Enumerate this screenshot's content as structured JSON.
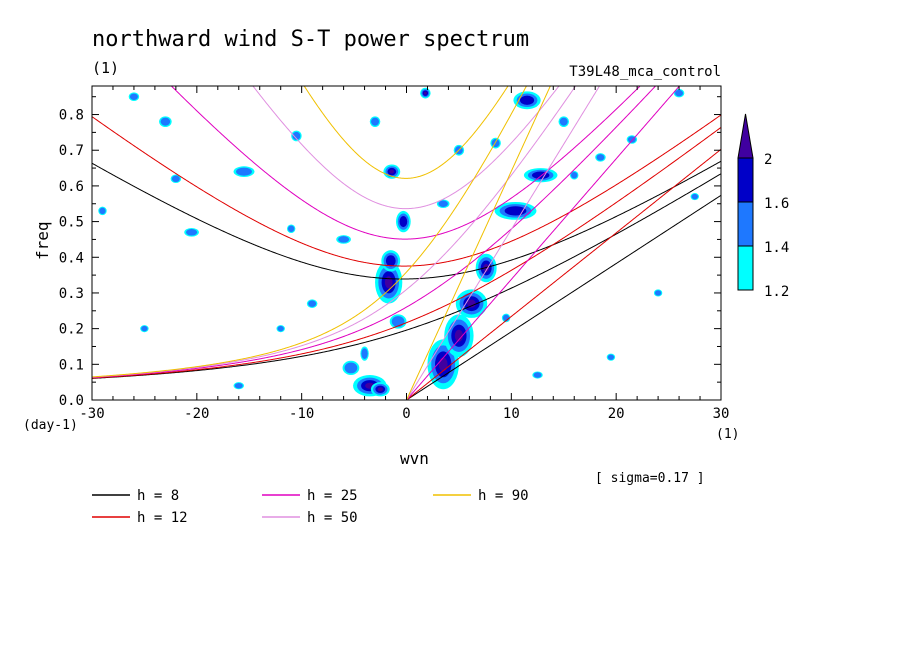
{
  "chart_data": {
    "type": "heatmap",
    "title": "northward wind S-T power spectrum",
    "subtitle_left": "(1)",
    "subtitle_right": "T39L48_mca_control",
    "xlabel": "wvn",
    "ylabel": "freq",
    "x_unit": "(1)",
    "y_unit": "(day-1)",
    "note": "[ sigma=0.17 ]",
    "xlim": [
      -30,
      30
    ],
    "ylim": [
      0,
      0.88
    ],
    "x_ticks": [
      -30,
      -20,
      -10,
      0,
      10,
      20,
      30
    ],
    "x_tick_labels": [
      "-30",
      "-20",
      "-10",
      "0",
      "10",
      "20",
      "30"
    ],
    "y_ticks": [
      0,
      0.1,
      0.2,
      0.3,
      0.4,
      0.5,
      0.6,
      0.7,
      0.8
    ],
    "y_tick_labels": [
      "0.0",
      "0.1",
      "0.2",
      "0.3",
      "0.4",
      "0.5",
      "0.6",
      "0.7",
      "0.8"
    ],
    "colorbar": {
      "levels": [
        1.2,
        1.4,
        1.6,
        2
      ],
      "labels": [
        "1.2",
        "1.4",
        "1.6",
        "2"
      ],
      "colors": [
        "#00ffff",
        "#1e78ff",
        "#0000c8",
        "#4000a0"
      ]
    },
    "dispersion_curves": [
      {
        "h": 8,
        "label": "h =  8",
        "color": "#000000"
      },
      {
        "h": 12,
        "label": "h = 12",
        "color": "#e00000"
      },
      {
        "h": 25,
        "label": "h = 25",
        "color": "#e000c0"
      },
      {
        "h": 50,
        "label": "h = 50",
        "color": "#e090e0"
      },
      {
        "h": 90,
        "label": "h = 90",
        "color": "#f0c000"
      }
    ],
    "blobs": [
      {
        "x": -1.7,
        "y": 0.33,
        "rx": 1.3,
        "ry": 0.06,
        "level": 3
      },
      {
        "x": -1.5,
        "y": 0.39,
        "rx": 0.9,
        "ry": 0.03,
        "level": 2
      },
      {
        "x": -0.3,
        "y": 0.5,
        "rx": 0.7,
        "ry": 0.03,
        "level": 2
      },
      {
        "x": -3.5,
        "y": 0.04,
        "rx": 1.6,
        "ry": 0.03,
        "level": 3
      },
      {
        "x": -2.5,
        "y": 0.03,
        "rx": 0.9,
        "ry": 0.02,
        "level": 3
      },
      {
        "x": 3.5,
        "y": 0.1,
        "rx": 1.5,
        "ry": 0.07,
        "level": 3
      },
      {
        "x": 5.0,
        "y": 0.18,
        "rx": 1.4,
        "ry": 0.06,
        "level": 3
      },
      {
        "x": 6.2,
        "y": 0.27,
        "rx": 1.5,
        "ry": 0.04,
        "level": 3
      },
      {
        "x": 7.6,
        "y": 0.37,
        "rx": 1.0,
        "ry": 0.04,
        "level": 3
      },
      {
        "x": 10.4,
        "y": 0.53,
        "rx": 2.0,
        "ry": 0.025,
        "level": 2
      },
      {
        "x": 12.8,
        "y": 0.63,
        "rx": 1.6,
        "ry": 0.02,
        "level": 2
      },
      {
        "x": -1.4,
        "y": 0.64,
        "rx": 0.8,
        "ry": 0.02,
        "level": 3
      },
      {
        "x": 1.8,
        "y": 0.86,
        "rx": 0.5,
        "ry": 0.015,
        "level": 3
      },
      {
        "x": 11.5,
        "y": 0.84,
        "rx": 1.3,
        "ry": 0.025,
        "level": 2
      },
      {
        "x": -5.3,
        "y": 0.09,
        "rx": 0.8,
        "ry": 0.02,
        "level": 1
      },
      {
        "x": -4.0,
        "y": 0.13,
        "rx": 0.4,
        "ry": 0.02,
        "level": 1
      },
      {
        "x": -0.8,
        "y": 0.22,
        "rx": 0.8,
        "ry": 0.02,
        "level": 1
      },
      {
        "x": -10.5,
        "y": 0.74,
        "rx": 0.5,
        "ry": 0.015,
        "level": 1
      },
      {
        "x": -15.5,
        "y": 0.64,
        "rx": 1.0,
        "ry": 0.015,
        "level": 1
      },
      {
        "x": -20.5,
        "y": 0.47,
        "rx": 0.7,
        "ry": 0.012,
        "level": 1
      },
      {
        "x": -22.0,
        "y": 0.62,
        "rx": 0.5,
        "ry": 0.012,
        "level": 1
      },
      {
        "x": -23.0,
        "y": 0.78,
        "rx": 0.6,
        "ry": 0.015,
        "level": 1
      },
      {
        "x": -26.0,
        "y": 0.85,
        "rx": 0.5,
        "ry": 0.012,
        "level": 1
      },
      {
        "x": -29.0,
        "y": 0.53,
        "rx": 0.4,
        "ry": 0.012,
        "level": 1
      },
      {
        "x": -3.0,
        "y": 0.78,
        "rx": 0.5,
        "ry": 0.015,
        "level": 1
      },
      {
        "x": -6.0,
        "y": 0.45,
        "rx": 0.7,
        "ry": 0.012,
        "level": 1
      },
      {
        "x": -9.0,
        "y": 0.27,
        "rx": 0.5,
        "ry": 0.012,
        "level": 1
      },
      {
        "x": -12.0,
        "y": 0.2,
        "rx": 0.4,
        "ry": 0.01,
        "level": 1
      },
      {
        "x": 3.5,
        "y": 0.55,
        "rx": 0.6,
        "ry": 0.012,
        "level": 1
      },
      {
        "x": 8.5,
        "y": 0.72,
        "rx": 0.5,
        "ry": 0.015,
        "level": 1
      },
      {
        "x": 15.0,
        "y": 0.78,
        "rx": 0.5,
        "ry": 0.015,
        "level": 1
      },
      {
        "x": 16.0,
        "y": 0.63,
        "rx": 0.4,
        "ry": 0.012,
        "level": 1
      },
      {
        "x": 18.5,
        "y": 0.68,
        "rx": 0.5,
        "ry": 0.012,
        "level": 1
      },
      {
        "x": 21.5,
        "y": 0.73,
        "rx": 0.5,
        "ry": 0.012,
        "level": 1
      },
      {
        "x": 26.0,
        "y": 0.86,
        "rx": 0.5,
        "ry": 0.012,
        "level": 1
      },
      {
        "x": 27.5,
        "y": 0.57,
        "rx": 0.4,
        "ry": 0.01,
        "level": 1
      },
      {
        "x": 24.0,
        "y": 0.3,
        "rx": 0.4,
        "ry": 0.01,
        "level": 1
      },
      {
        "x": 19.5,
        "y": 0.12,
        "rx": 0.4,
        "ry": 0.01,
        "level": 1
      },
      {
        "x": 12.5,
        "y": 0.07,
        "rx": 0.5,
        "ry": 0.01,
        "level": 1
      },
      {
        "x": -16.0,
        "y": 0.04,
        "rx": 0.5,
        "ry": 0.01,
        "level": 1
      },
      {
        "x": -25.0,
        "y": 0.2,
        "rx": 0.4,
        "ry": 0.01,
        "level": 1
      },
      {
        "x": -11.0,
        "y": 0.48,
        "rx": 0.4,
        "ry": 0.012,
        "level": 1
      },
      {
        "x": 5.0,
        "y": 0.7,
        "rx": 0.5,
        "ry": 0.015,
        "level": 1
      },
      {
        "x": 9.5,
        "y": 0.23,
        "rx": 0.4,
        "ry": 0.012,
        "level": 1
      }
    ]
  }
}
